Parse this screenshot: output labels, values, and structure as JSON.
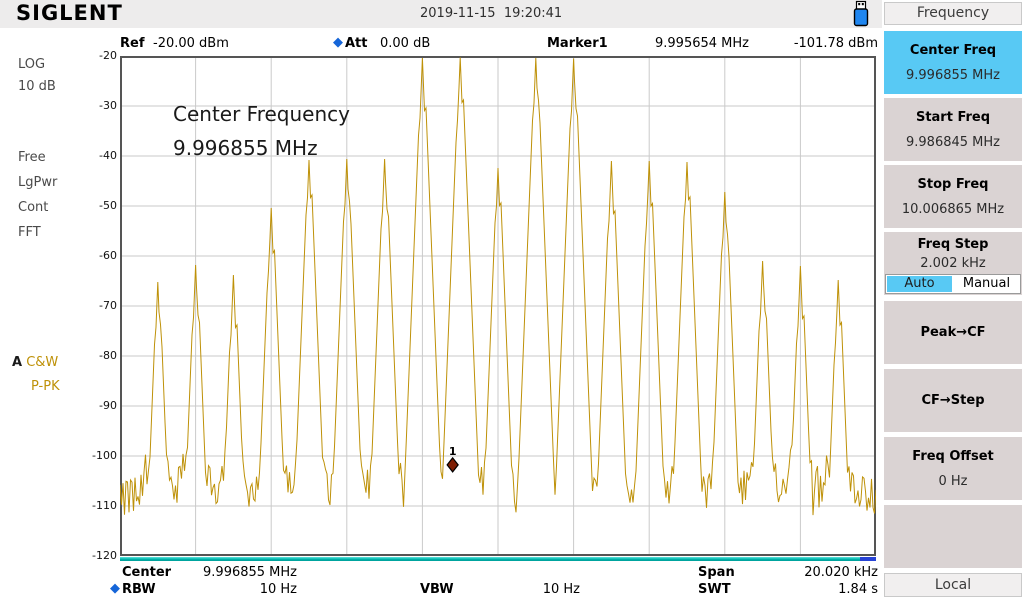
{
  "top_bar": {
    "logo": "SIGLENT",
    "datetime": "2019-11-15  19:20:41"
  },
  "header_row": {
    "ref_label": "Ref",
    "ref_value": "-20.00 dBm",
    "att_label": "Att",
    "att_value": "0.00 dB",
    "marker_label": "Marker1",
    "marker_freq": "9.995654 MHz",
    "marker_ampl": "-101.78 dBm"
  },
  "left_panel": {
    "items": [
      "LOG",
      "10 dB",
      "Free",
      "LgPwr",
      "Cont",
      "FFT"
    ],
    "trace_prefix": "A",
    "trace_type": "C&W",
    "detector": "P-PK"
  },
  "annotation": {
    "line1": "Center Frequency",
    "line2": "9.996855 MHz"
  },
  "bottom_bar": {
    "center_label": "Center",
    "center_value": "9.996855 MHz",
    "span_label": "Span",
    "span_value": "20.020 kHz",
    "rbw_label": "RBW",
    "rbw_value": "10 Hz",
    "vbw_label": "VBW",
    "vbw_value": "10 Hz",
    "swt_label": "SWT",
    "swt_value": "1.84 s"
  },
  "sidebar": {
    "title": "Frequency",
    "buttons": [
      {
        "label": "Center Freq",
        "value": "9.996855 MHz",
        "active": true
      },
      {
        "label": "Start Freq",
        "value": "9.986845 MHz"
      },
      {
        "label": "Stop Freq",
        "value": "10.006865 MHz"
      },
      {
        "label": "Freq Step",
        "value": "2.002 kHz",
        "toggle": {
          "options": [
            "Auto",
            "Manual"
          ],
          "selected": "Auto"
        }
      },
      {
        "label": "Peak→CF"
      },
      {
        "label": "CF→Step"
      },
      {
        "label": "Freq Offset",
        "value": "0 Hz"
      },
      {
        "label": ""
      }
    ],
    "local_label": "Local"
  },
  "colors": {
    "accent_cyan": "#58C9F4",
    "button_gray": "#DAD3D3",
    "trace": "#BE9108",
    "grid": "#CACACA",
    "plot_border": "#555555",
    "marker_fill": "#7E1E04",
    "sweep_teal": "#00B4AC",
    "sweep_cap_blue": "#2743D6",
    "diamond_blue": "#1565D8"
  },
  "chart_data": {
    "type": "line",
    "title": "Spectrum trace (comb of modulation sidebands around 9.996855 MHz)",
    "x_axis": {
      "center_mhz": 9.996855,
      "span_khz": 20.02,
      "divisions": 10
    },
    "y_axis": {
      "ref_dbm": -20,
      "db_per_div": 10,
      "min_dbm": -120,
      "max_dbm": -20,
      "tick_labels": [
        -20,
        -30,
        -40,
        -50,
        -60,
        -70,
        -80,
        -90,
        -100,
        -110,
        -120
      ]
    },
    "noise_floor_dbm": -103,
    "comb_spacing_khz": 1.001,
    "peaks": [
      {
        "n": -9,
        "dbm": -65.2
      },
      {
        "n": -8,
        "dbm": -61.8
      },
      {
        "n": -7,
        "dbm": -63.8
      },
      {
        "n": -6,
        "dbm": -50.4
      },
      {
        "n": -5,
        "dbm": -40.8
      },
      {
        "n": -4,
        "dbm": -40.6
      },
      {
        "n": -3,
        "dbm": -40.6
      },
      {
        "n": -2,
        "dbm": -20.4
      },
      {
        "n": -1,
        "dbm": -20.3
      },
      {
        "n": 0,
        "dbm": -42.4
      },
      {
        "n": 1,
        "dbm": -20.4
      },
      {
        "n": 2,
        "dbm": -20.5
      },
      {
        "n": 3,
        "dbm": -41.0
      },
      {
        "n": 4,
        "dbm": -41.0
      },
      {
        "n": 5,
        "dbm": -41.2
      },
      {
        "n": 6,
        "dbm": -47.2
      },
      {
        "n": 7,
        "dbm": -61.0
      },
      {
        "n": 8,
        "dbm": -62.0
      },
      {
        "n": 9,
        "dbm": -64.8
      }
    ],
    "marker": {
      "id": "1",
      "freq_mhz": 9.995654,
      "dbm": -101.78
    }
  }
}
